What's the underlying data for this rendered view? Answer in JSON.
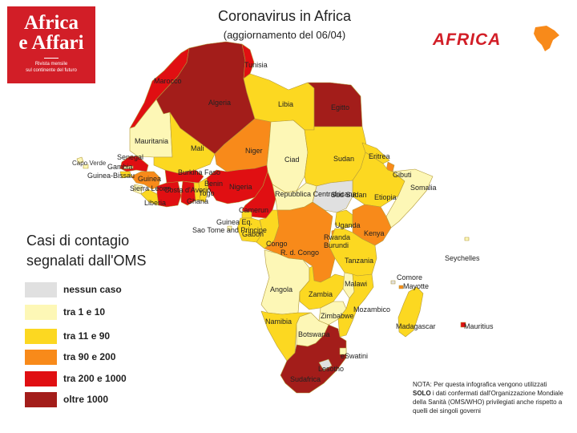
{
  "logo": {
    "line1": "Africa",
    "line2": "e Affari",
    "tagline1": "Rivista mensile",
    "tagline2": "sul continente del futuro"
  },
  "title": "Coronavirus in Africa",
  "subtitle": "(aggiornamento del 06/04)",
  "brand": {
    "text": "AFRICA",
    "color": "#d21e27"
  },
  "legend": {
    "title_line1": "Casi di contagio",
    "title_line2": "segnalati dall'OMS",
    "items": [
      {
        "label": "nessun caso",
        "color": "#e0e0e0"
      },
      {
        "label": "tra 1 e 10",
        "color": "#fdf7b6"
      },
      {
        "label": "tra 11 e 90",
        "color": "#fcd821"
      },
      {
        "label": "tra 90 e 200",
        "color": "#f88a1a"
      },
      {
        "label": "tra 200 e 1000",
        "color": "#e00f12"
      },
      {
        "label": "oltre 1000",
        "color": "#a31d1a"
      }
    ]
  },
  "note": {
    "prefix": "NOTA: Per questa infografica vengono utilizzati ",
    "bold": "SOLO",
    "suffix": " i dati confermati dall'Organizzazione Mondiale della Sanità (OMS/WHO) privilegiati anche rispetto a quelli dei singoli  governi"
  },
  "countries": [
    {
      "name": "Marocco",
      "category": "tra 200 e 1000",
      "color": "#e00f12"
    },
    {
      "name": "Algeria",
      "category": "oltre 1000",
      "color": "#a31d1a"
    },
    {
      "name": "Tunisia",
      "category": "tra 200 e 1000",
      "color": "#e00f12"
    },
    {
      "name": "Libia",
      "category": "tra 11 e 90",
      "color": "#fcd821"
    },
    {
      "name": "Egitto",
      "category": "oltre 1000",
      "color": "#a31d1a"
    },
    {
      "name": "Mauritania",
      "category": "tra 1 e 10",
      "color": "#fdf7b6"
    },
    {
      "name": "Mali",
      "category": "tra 11 e 90",
      "color": "#fcd821"
    },
    {
      "name": "Niger",
      "category": "tra 90 e 200",
      "color": "#f88a1a"
    },
    {
      "name": "Ciad",
      "category": "tra 1 e 10",
      "color": "#fdf7b6"
    },
    {
      "name": "Sudan",
      "category": "tra 11 e 90",
      "color": "#fcd821"
    },
    {
      "name": "Eritrea",
      "category": "tra 11 e 90",
      "color": "#fcd821"
    },
    {
      "name": "Gibuti",
      "category": "tra 90 e 200",
      "color": "#f88a1a"
    },
    {
      "name": "Etiopia",
      "category": "tra 11 e 90",
      "color": "#fcd821"
    },
    {
      "name": "Somalia",
      "category": "tra 1 e 10",
      "color": "#fdf7b6"
    },
    {
      "name": "Sud Sudan",
      "category": "nessun caso",
      "color": "#e0e0e0"
    },
    {
      "name": "Senegal",
      "category": "tra 200 e 1000",
      "color": "#e00f12"
    },
    {
      "name": "Gambia",
      "category": "tra 1 e 10",
      "color": "#fdf7b6"
    },
    {
      "name": "Guinea-Bissau",
      "category": "tra 11 e 90",
      "color": "#fcd821"
    },
    {
      "name": "Guinea",
      "category": "tra 90 e 200",
      "color": "#f88a1a"
    },
    {
      "name": "Sierra Leone",
      "category": "tra 1 e 10",
      "color": "#fdf7b6"
    },
    {
      "name": "Liberia",
      "category": "tra 11 e 90",
      "color": "#fcd821"
    },
    {
      "name": "Costa d'Avorio",
      "category": "tra 200 e 1000",
      "color": "#e00f12"
    },
    {
      "name": "Burkina Faso",
      "category": "tra 200 e 1000",
      "color": "#e00f12"
    },
    {
      "name": "Ghana",
      "category": "tra 200 e 1000",
      "color": "#e00f12"
    },
    {
      "name": "Togo",
      "category": "tra 11 e 90",
      "color": "#fcd821"
    },
    {
      "name": "Benin",
      "category": "tra 11 e 90",
      "color": "#fcd821"
    },
    {
      "name": "Nigeria",
      "category": "tra 200 e 1000",
      "color": "#e00f12"
    },
    {
      "name": "Camerun",
      "category": "tra 200 e 1000",
      "color": "#e00f12"
    },
    {
      "name": "Repubblica Centrafricana",
      "category": "tra 1 e 10",
      "color": "#fdf7b6"
    },
    {
      "name": "Guinea Eq.",
      "category": "tra 11 e 90",
      "color": "#fcd821"
    },
    {
      "name": "Gabon",
      "category": "tra 11 e 90",
      "color": "#fcd821"
    },
    {
      "name": "Congo",
      "category": "tra 11 e 90",
      "color": "#fcd821"
    },
    {
      "name": "R. d. Congo",
      "category": "tra 90 e 200",
      "color": "#f88a1a"
    },
    {
      "name": "Uganda",
      "category": "tra 11 e 90",
      "color": "#fcd821"
    },
    {
      "name": "Kenya",
      "category": "tra 90 e 200",
      "color": "#f88a1a"
    },
    {
      "name": "Rwanda",
      "category": "tra 90 e 200",
      "color": "#f88a1a"
    },
    {
      "name": "Burundi",
      "category": "tra 1 e 10",
      "color": "#fdf7b6"
    },
    {
      "name": "Tanzania",
      "category": "tra 11 e 90",
      "color": "#fcd821"
    },
    {
      "name": "Angola",
      "category": "tra 1 e 10",
      "color": "#fdf7b6"
    },
    {
      "name": "Zambia",
      "category": "tra 11 e 90",
      "color": "#fcd821"
    },
    {
      "name": "Malawi",
      "category": "tra 1 e 10",
      "color": "#fdf7b6"
    },
    {
      "name": "Mozambico",
      "category": "tra 11 e 90",
      "color": "#fcd821"
    },
    {
      "name": "Zimbabwe",
      "category": "tra 1 e 10",
      "color": "#fdf7b6"
    },
    {
      "name": "Namibia",
      "category": "tra 11 e 90",
      "color": "#fcd821"
    },
    {
      "name": "Botswana",
      "category": "tra 1 e 10",
      "color": "#fdf7b6"
    },
    {
      "name": "Sudafrica",
      "category": "oltre 1000",
      "color": "#a31d1a"
    },
    {
      "name": "eSwatini",
      "category": "tra 1 e 10",
      "color": "#fdf7b6"
    },
    {
      "name": "Lesotho",
      "category": "nessun caso",
      "color": "#e0e0e0"
    },
    {
      "name": "Madagascar",
      "category": "tra 11 e 90",
      "color": "#fcd821"
    },
    {
      "name": "Capo Verde",
      "category": "tra 1 e 10",
      "color": "#fdf7b6"
    },
    {
      "name": "Sao Tome and Principe",
      "category": "tra 1 e 10",
      "color": "#fdf7b6"
    },
    {
      "name": "Comore",
      "category": "nessun caso",
      "color": "#e0e0e0"
    },
    {
      "name": "Mayotte",
      "category": "tra 90 e 200",
      "color": "#f88a1a"
    },
    {
      "name": "Seychelles",
      "category": "tra 1 e 10",
      "color": "#fdf7b6"
    },
    {
      "name": "Mauritius",
      "category": "tra 200 e 1000",
      "color": "#e00f12"
    }
  ]
}
